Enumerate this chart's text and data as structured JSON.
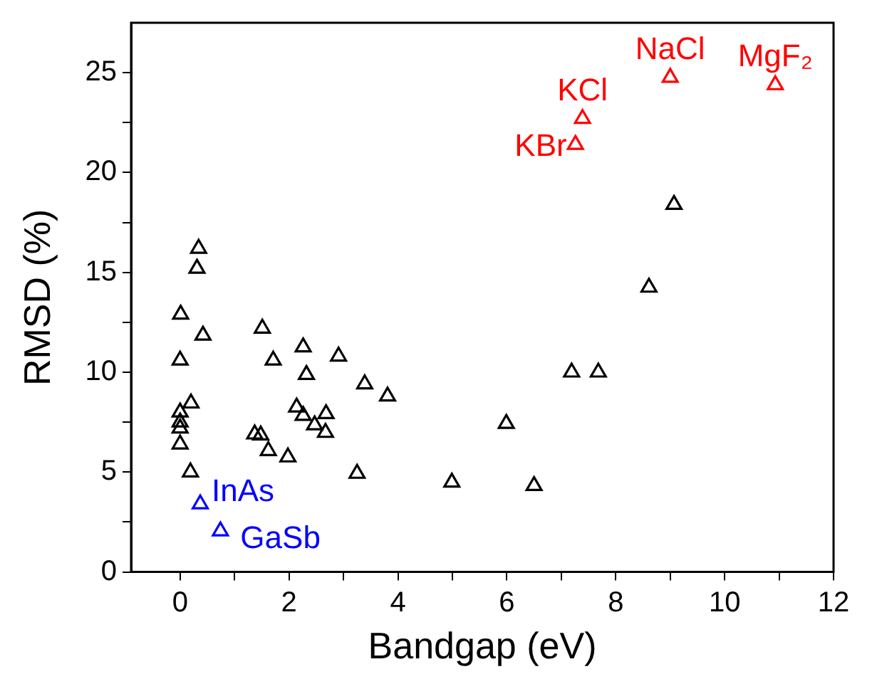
{
  "chart_data": {
    "type": "scatter",
    "xlabel": "Bandgap (eV)",
    "ylabel": "RMSD (%)",
    "marker": "triangle",
    "grid": false,
    "legend": false,
    "xlim": [
      -0.9,
      12
    ],
    "xticks": [
      0,
      {
        "value": 1,
        "label": null
      },
      2,
      {
        "value": 3,
        "label": null
      },
      4,
      {
        "value": 5,
        "label": null
      },
      6,
      {
        "value": 7,
        "label": null
      },
      8,
      {
        "value": 9,
        "label": null
      },
      10,
      {
        "value": 11,
        "label": null
      },
      12
    ],
    "ylim": [
      0,
      27.5
    ],
    "yticks": [
      0,
      {
        "value": 2.5,
        "label": null
      },
      5,
      {
        "value": 7.5,
        "label": null
      },
      10,
      {
        "value": 12.5,
        "label": null
      },
      15,
      {
        "value": 17.5,
        "label": null
      },
      20,
      {
        "value": 22.5,
        "label": null
      },
      25
    ],
    "series": [
      {
        "color": "#000000",
        "x": [
          0.34,
          0.31,
          0.01,
          0.42,
          0.0,
          0.2,
          0.0,
          0.0,
          0.0,
          0.0,
          0.19,
          1.51,
          1.71,
          1.37,
          1.48,
          1.62,
          1.98,
          2.26,
          2.32,
          2.14,
          2.26,
          2.47,
          2.68,
          2.67,
          2.91,
          3.39,
          3.81,
          3.25,
          4.99,
          5.99,
          6.5,
          7.19,
          7.68,
          8.61,
          9.07
        ],
        "values": [
          16.2,
          15.2,
          12.9,
          11.85,
          10.6,
          8.45,
          8.0,
          7.5,
          7.2,
          6.4,
          5.0,
          12.2,
          10.6,
          6.9,
          6.85,
          6.07,
          5.75,
          11.26,
          9.88,
          8.25,
          7.83,
          7.36,
          7.92,
          6.98,
          10.8,
          9.41,
          8.8,
          4.93,
          4.49,
          7.43,
          4.32,
          10.0,
          10.0,
          14.25,
          18.4
        ]
      },
      {
        "color": "#0000ff",
        "x": [
          0.37,
          0.74
        ],
        "values": [
          3.4,
          2.05
        ]
      },
      {
        "color": "#ff0000",
        "x": [
          7.26,
          7.39,
          9.0,
          10.93
        ],
        "values": [
          21.4,
          22.7,
          24.76,
          24.39
        ]
      }
    ],
    "annotations": [
      {
        "text": "InAs",
        "x": 0.37,
        "y": 3.4
      },
      {
        "text": "GaSb",
        "x": 0.74,
        "y": 2.05
      },
      {
        "text": "KBr",
        "x": 7.26,
        "y": 21.4
      },
      {
        "text": "KCl",
        "x": 7.39,
        "y": 22.7
      },
      {
        "text": "NaCl",
        "x": 9.0,
        "y": 24.76
      },
      {
        "text": "MgF₂",
        "x": 10.93,
        "y": 24.39
      }
    ]
  }
}
